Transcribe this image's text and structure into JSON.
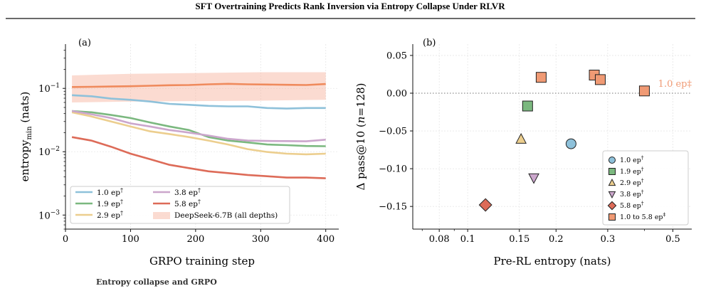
{
  "header": {
    "title": "SFT Overtraining Predicts Rank Inversion via Entropy Collapse Under RLVR"
  },
  "caption_fragment": "Entropy collapse and GRPO",
  "chart_data": [
    {
      "panel": "(a)",
      "type": "line",
      "xlabel": "GRPO training step",
      "ylabel": "entropy_min (nats)",
      "ylabel_parts": {
        "main": "entropy",
        "sub": "min",
        "unit": "(nats)"
      },
      "xlim": [
        0,
        420
      ],
      "xticks": [
        0,
        100,
        200,
        300,
        400
      ],
      "ylim": [
        0.0006,
        0.5
      ],
      "yscale": "log",
      "yticks": [
        {
          "value": 0.001,
          "label": "10",
          "exp": "−3"
        },
        {
          "value": 0.01,
          "label": "10",
          "exp": "−2"
        },
        {
          "value": 0.1,
          "label": "10",
          "exp": "−1"
        }
      ],
      "grid": true,
      "legend_position": "lower-left",
      "band": {
        "name": "DeepSeek-6.7B (all depths)",
        "color": "#f7b09a",
        "x": [
          10,
          100,
          200,
          300,
          400
        ],
        "lower": [
          0.06,
          0.062,
          0.063,
          0.064,
          0.066
        ],
        "upper": [
          0.16,
          0.17,
          0.175,
          0.18,
          0.18
        ]
      },
      "x": [
        10,
        40,
        70,
        100,
        130,
        160,
        190,
        220,
        250,
        280,
        310,
        340,
        370,
        400
      ],
      "series": [
        {
          "name": "1.0 ep",
          "mark": "†",
          "color": "#8ec1da",
          "values": [
            0.078,
            0.075,
            0.069,
            0.066,
            0.062,
            0.057,
            0.055,
            0.053,
            0.052,
            0.052,
            0.049,
            0.048,
            0.049,
            0.049
          ]
        },
        {
          "name": "1.9 ep",
          "mark": "†",
          "color": "#7bb87f",
          "values": [
            0.044,
            0.042,
            0.038,
            0.034,
            0.029,
            0.025,
            0.022,
            0.017,
            0.015,
            0.014,
            0.013,
            0.0127,
            0.0123,
            0.0122
          ]
        },
        {
          "name": "2.9 ep",
          "mark": "†",
          "color": "#ecce8e",
          "values": [
            0.042,
            0.036,
            0.03,
            0.025,
            0.021,
            0.019,
            0.017,
            0.015,
            0.013,
            0.011,
            0.0099,
            0.0093,
            0.0091,
            0.0093
          ]
        },
        {
          "name": "3.8 ep",
          "mark": "†",
          "color": "#cba6cc",
          "values": [
            0.044,
            0.039,
            0.034,
            0.028,
            0.025,
            0.022,
            0.02,
            0.018,
            0.016,
            0.015,
            0.0148,
            0.0147,
            0.0146,
            0.0155
          ]
        },
        {
          "name": "5.8 ep",
          "mark": "†",
          "color": "#dd6b58",
          "values": [
            0.017,
            0.015,
            0.012,
            0.0093,
            0.0076,
            0.0062,
            0.0055,
            0.0049,
            0.0046,
            0.0043,
            0.0041,
            0.0039,
            0.0039,
            0.0038
          ]
        },
        {
          "name": "DeepSeek-6.7B",
          "color": "#ef8a5c",
          "values": [
            0.105,
            0.106,
            0.107,
            0.108,
            0.11,
            0.112,
            0.113,
            0.116,
            0.118,
            0.116,
            0.115,
            0.114,
            0.113,
            0.117
          ]
        }
      ]
    },
    {
      "panel": "(b)",
      "type": "scatter",
      "xlabel": "Pre-RL entropy (nats)",
      "ylabel": "Δ pass@10 (n=128)",
      "ylabel_parts": {
        "prefix": "Δ pass@10 (",
        "n": "n",
        "suffix": "=128)"
      },
      "xscale": "log",
      "xlim": [
        0.065,
        0.58
      ],
      "xticks": [
        {
          "value": 0.08,
          "label": "0.08"
        },
        {
          "value": 0.1,
          "label": "0.1"
        },
        {
          "value": 0.15,
          "label": "0.15"
        },
        {
          "value": 0.2,
          "label": "0.2"
        },
        {
          "value": 0.3,
          "label": "0.3"
        },
        {
          "value": 0.5,
          "label": "0.5"
        }
      ],
      "ylim": [
        -0.18,
        0.065
      ],
      "yticks": [
        0.05,
        0.0,
        -0.05,
        -0.1,
        -0.15
      ],
      "ytick_labels": [
        "0.05",
        "0.00",
        "−0.05",
        "−0.10",
        "−0.15"
      ],
      "grid": true,
      "reference_line": {
        "y": 0.0,
        "label": "1.0 ep‡",
        "color": "#f09a74"
      },
      "legend_position": "lower-right",
      "series": [
        {
          "name": "1.0 ep",
          "mark": "†",
          "marker": "circle",
          "color": "#8ec1da",
          "points": [
            [
              0.225,
              -0.067
            ]
          ]
        },
        {
          "name": "1.9 ep",
          "mark": "†",
          "marker": "square",
          "color": "#7bb87f",
          "points": [
            [
              0.16,
              -0.017
            ]
          ]
        },
        {
          "name": "2.9 ep",
          "mark": "†",
          "marker": "triangle-up",
          "color": "#ecce8e",
          "points": [
            [
              0.152,
              -0.061
            ]
          ]
        },
        {
          "name": "3.8 ep",
          "mark": "†",
          "marker": "triangle-down",
          "color": "#cba6cc",
          "points": [
            [
              0.168,
              -0.112
            ]
          ]
        },
        {
          "name": "5.8 ep",
          "mark": "†",
          "marker": "diamond",
          "color": "#dd6b58",
          "points": [
            [
              0.115,
              -0.148
            ]
          ]
        },
        {
          "name": "1.0 to 5.8 ep",
          "mark": "‡",
          "marker": "square",
          "color": "#f09a74",
          "points": [
            [
              0.178,
              0.021
            ],
            [
              0.27,
              0.024
            ],
            [
              0.283,
              0.018
            ],
            [
              0.4,
              0.003
            ]
          ]
        }
      ]
    }
  ]
}
